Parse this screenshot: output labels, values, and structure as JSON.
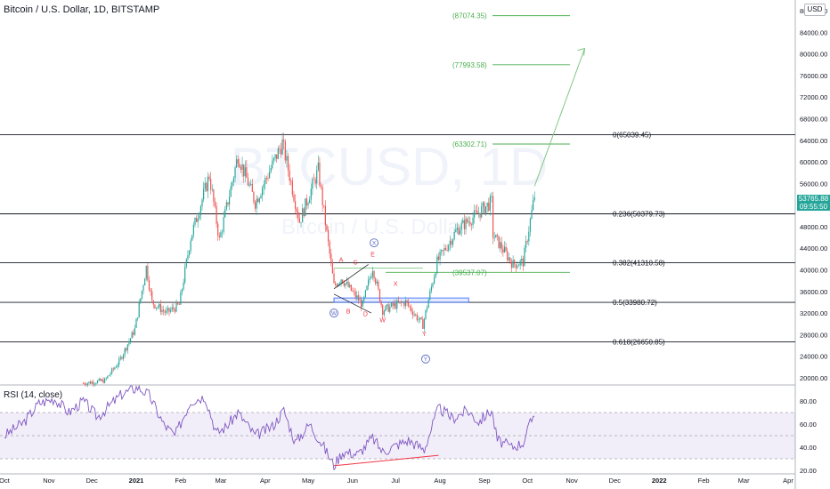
{
  "header": {
    "symbol_title": "Bitcoin / U.S. Dollar, 1D, BITSTAMP",
    "currency": "USD"
  },
  "rsi": {
    "title": "RSI (14, close)"
  },
  "price_tag": {
    "value": "53765.88",
    "countdown": "09:55:50"
  },
  "watermark": {
    "symbol": "BTCUSD, 1D",
    "name": "Bitcoin / U.S. Dollar"
  },
  "colors": {
    "up": "#26a69a",
    "down": "#ef5350",
    "projection": "#4caf50",
    "rsi_line": "#7e57c2",
    "wave_label": "#f23645",
    "wave_circle": "#5c6bc0",
    "box": "#2962ff"
  },
  "chart_data": [
    {
      "type": "candlestick",
      "title": "Bitcoin / U.S. Dollar, 1D, BITSTAMP",
      "xlabel": "",
      "ylabel": "",
      "ylim": [
        18000,
        90000
      ],
      "y_ticks": [
        "20000.00",
        "24000.00",
        "28000.00",
        "32000.00",
        "36000.00",
        "40000.00",
        "44000.00",
        "48000.00",
        "52000.00",
        "56000.00",
        "60000.00",
        "64000.00",
        "68000.00",
        "72000.00",
        "76000.00",
        "80000.00",
        "84000.00",
        "88000.00"
      ],
      "x_ticks": [
        "Oct",
        "Nov",
        "Dec",
        "2021",
        "Feb",
        "Mar",
        "Apr",
        "May",
        "Jun",
        "Jul",
        "Aug",
        "Sep",
        "Oct",
        "Nov",
        "Dec",
        "2022",
        "Feb",
        "Mar",
        "Apr"
      ],
      "x_tick_dates": [
        "2020-10-01",
        "2020-11-01",
        "2020-12-01",
        "2021-01-01",
        "2021-02-01",
        "2021-03-01",
        "2021-04-01",
        "2021-05-01",
        "2021-06-01",
        "2021-07-01",
        "2021-08-01",
        "2021-09-01",
        "2021-10-01",
        "2021-11-01",
        "2021-12-01",
        "2022-01-01",
        "2022-02-01",
        "2022-03-01",
        "2022-04-01"
      ],
      "series": [
        {
          "points": [
            [
              "2020-11-25",
              19000
            ],
            [
              "2020-12-10",
              19500
            ],
            [
              "2020-12-20",
              23000
            ],
            [
              "2020-12-31",
              29000
            ],
            [
              "2021-01-08",
              40500
            ],
            [
              "2021-01-12",
              34000
            ],
            [
              "2021-01-22",
              32000
            ],
            [
              "2021-01-31",
              33500
            ],
            [
              "2021-02-08",
              46000
            ],
            [
              "2021-02-21",
              57500
            ],
            [
              "2021-02-28",
              45500
            ],
            [
              "2021-03-13",
              61200
            ],
            [
              "2021-03-25",
              52500
            ],
            [
              "2021-04-13",
              63500
            ],
            [
              "2021-04-25",
              49000
            ],
            [
              "2021-05-08",
              58500
            ],
            [
              "2021-05-19",
              37000
            ],
            [
              "2021-05-24",
              38500
            ],
            [
              "2021-06-08",
              33500
            ],
            [
              "2021-06-15",
              40500
            ],
            [
              "2021-06-22",
              32500
            ],
            [
              "2021-07-01",
              33500
            ],
            [
              "2021-07-08",
              34000
            ],
            [
              "2021-07-20",
              29800
            ],
            [
              "2021-07-30",
              41500
            ],
            [
              "2021-08-13",
              47500
            ],
            [
              "2021-08-23",
              49500
            ],
            [
              "2021-09-06",
              52600
            ],
            [
              "2021-09-07",
              46500
            ],
            [
              "2021-09-21",
              41000
            ],
            [
              "2021-09-28",
              41500
            ],
            [
              "2021-10-06",
              53765
            ]
          ]
        }
      ],
      "fibonacci_levels": [
        {
          "label": "0(65039.45)",
          "value": 65039.45
        },
        {
          "label": "0.236(50379.73)",
          "value": 50379.73
        },
        {
          "label": "0.382(41310.58)",
          "value": 41310.58
        },
        {
          "label": "0.5(33980.72)",
          "value": 33980.72
        },
        {
          "label": "0.618(26650.85)",
          "value": 26650.85
        }
      ],
      "projection_levels": [
        {
          "label": "(87074.35)",
          "value": 87074.35
        },
        {
          "label": "(77993.58)",
          "value": 77993.58
        },
        {
          "label": "(63302.71)",
          "value": 63302.71
        },
        {
          "label": "(39537.07)",
          "value": 39537.07
        }
      ],
      "projection_arrow": {
        "from": [
          "2021-10-06",
          55500
        ],
        "to": [
          "2021-11-10",
          81000
        ]
      },
      "wave_labels": [
        {
          "text": "A",
          "date": "2021-05-24",
          "value": 42000
        },
        {
          "text": "B",
          "date": "2021-05-29",
          "value": 32400
        },
        {
          "text": "C",
          "date": "2021-06-03",
          "value": 41500
        },
        {
          "text": "D",
          "date": "2021-06-10",
          "value": 31900
        },
        {
          "text": "E",
          "date": "2021-06-15",
          "value": 43000
        },
        {
          "text": "W",
          "date": "2021-06-22",
          "value": 30800
        },
        {
          "text": "X",
          "date": "2021-07-01",
          "value": 37500
        },
        {
          "text": "Y",
          "date": "2021-07-21",
          "value": 28200
        }
      ],
      "wave_circles": [
        {
          "text": "W",
          "date": "2021-05-19",
          "value": 32000
        },
        {
          "text": "X",
          "date": "2021-06-16",
          "value": 45000
        },
        {
          "text": "Y",
          "date": "2021-07-22",
          "value": 23500
        }
      ]
    },
    {
      "type": "line",
      "title": "RSI (14, close)",
      "xlabel": "",
      "ylabel": "",
      "ylim": [
        18,
        95
      ],
      "y_ticks": [
        "20.00",
        "40.00",
        "60.00",
        "80.00"
      ],
      "band": [
        30,
        70
      ],
      "series": [
        {
          "points": [
            [
              "2020-10-01",
              50
            ],
            [
              "2020-10-15",
              62
            ],
            [
              "2020-10-25",
              78
            ],
            [
              "2020-11-05",
              82
            ],
            [
              "2020-11-15",
              70
            ],
            [
              "2020-11-25",
              80
            ],
            [
              "2020-12-05",
              66
            ],
            [
              "2020-12-15",
              78
            ],
            [
              "2020-12-22",
              86
            ],
            [
              "2021-01-02",
              92
            ],
            [
              "2021-01-10",
              85
            ],
            [
              "2021-01-20",
              60
            ],
            [
              "2021-01-28",
              50
            ],
            [
              "2021-02-08",
              80
            ],
            [
              "2021-02-18",
              84
            ],
            [
              "2021-02-26",
              52
            ],
            [
              "2021-03-05",
              58
            ],
            [
              "2021-03-13",
              70
            ],
            [
              "2021-03-25",
              50
            ],
            [
              "2021-04-06",
              58
            ],
            [
              "2021-04-14",
              72
            ],
            [
              "2021-04-22",
              44
            ],
            [
              "2021-05-02",
              60
            ],
            [
              "2021-05-12",
              40
            ],
            [
              "2021-05-19",
              24
            ],
            [
              "2021-05-25",
              36
            ],
            [
              "2021-06-05",
              34
            ],
            [
              "2021-06-15",
              48
            ],
            [
              "2021-06-22",
              36
            ],
            [
              "2021-07-02",
              42
            ],
            [
              "2021-07-10",
              46
            ],
            [
              "2021-07-21",
              38
            ],
            [
              "2021-07-31",
              74
            ],
            [
              "2021-08-10",
              65
            ],
            [
              "2021-08-20",
              72
            ],
            [
              "2021-08-28",
              62
            ],
            [
              "2021-09-06",
              72
            ],
            [
              "2021-09-10",
              46
            ],
            [
              "2021-09-20",
              40
            ],
            [
              "2021-09-28",
              44
            ],
            [
              "2021-10-06",
              70
            ]
          ]
        }
      ],
      "divergence_line": {
        "from": [
          "2021-05-19",
          24
        ],
        "to": [
          "2021-07-31",
          33
        ]
      }
    }
  ]
}
